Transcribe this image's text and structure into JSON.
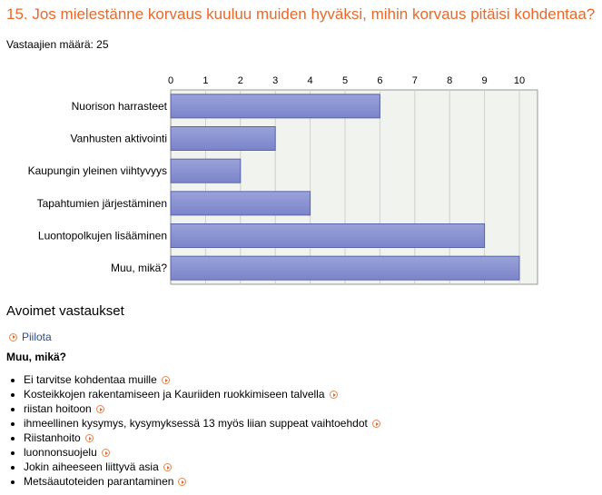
{
  "question_title": "15. Jos mielestänne korvaus kuuluu muiden hyväksi, mihin korvaus pitäisi kohdentaa?",
  "respondents_label": "Vastaajien määrä: 25",
  "chart_data": {
    "type": "bar",
    "orientation": "horizontal",
    "categories": [
      "Nuorison harrasteet",
      "Vanhusten aktivointi",
      "Kaupungin yleinen viihtyvyys",
      "Tapahtumien järjestäminen",
      "Luontopolkujen lisääminen",
      "Muu, mikä?"
    ],
    "values": [
      6,
      3,
      2,
      4,
      9,
      10
    ],
    "xlim": [
      0,
      10.5
    ],
    "xticks": [
      0,
      1,
      2,
      3,
      4,
      5,
      6,
      7,
      8,
      9,
      10
    ],
    "xaxis_position": "top",
    "grid": true,
    "colors": {
      "bar": "#7b84c9",
      "bar_dark": "#5a63a8",
      "plot_bg": "#f1f3ee",
      "grid": "#d0d0d0",
      "frame": "#999999"
    }
  },
  "open_answers": {
    "section_title": "Avoimet vastaukset",
    "toggle_label": "Piilota",
    "subsection_title": "Muu, mikä?",
    "items": [
      "Ei tarvitse kohdentaa muille",
      "Kosteikkojen rakentamiseen ja Kauriiden ruokkimiseen talvella",
      "riistan hoitoon",
      "ihmeellinen kysymys, kysymyksessä 13 myös liian suppeat vaihtoehdot",
      "Riistanhoito",
      "luonnonsuojelu",
      "Jokin aiheeseen liittyvä asia",
      "Metsäautoteiden parantaminen"
    ],
    "icons": {
      "toggle": "circle-arrow-icon",
      "item_expand": "circle-arrow-icon"
    }
  }
}
